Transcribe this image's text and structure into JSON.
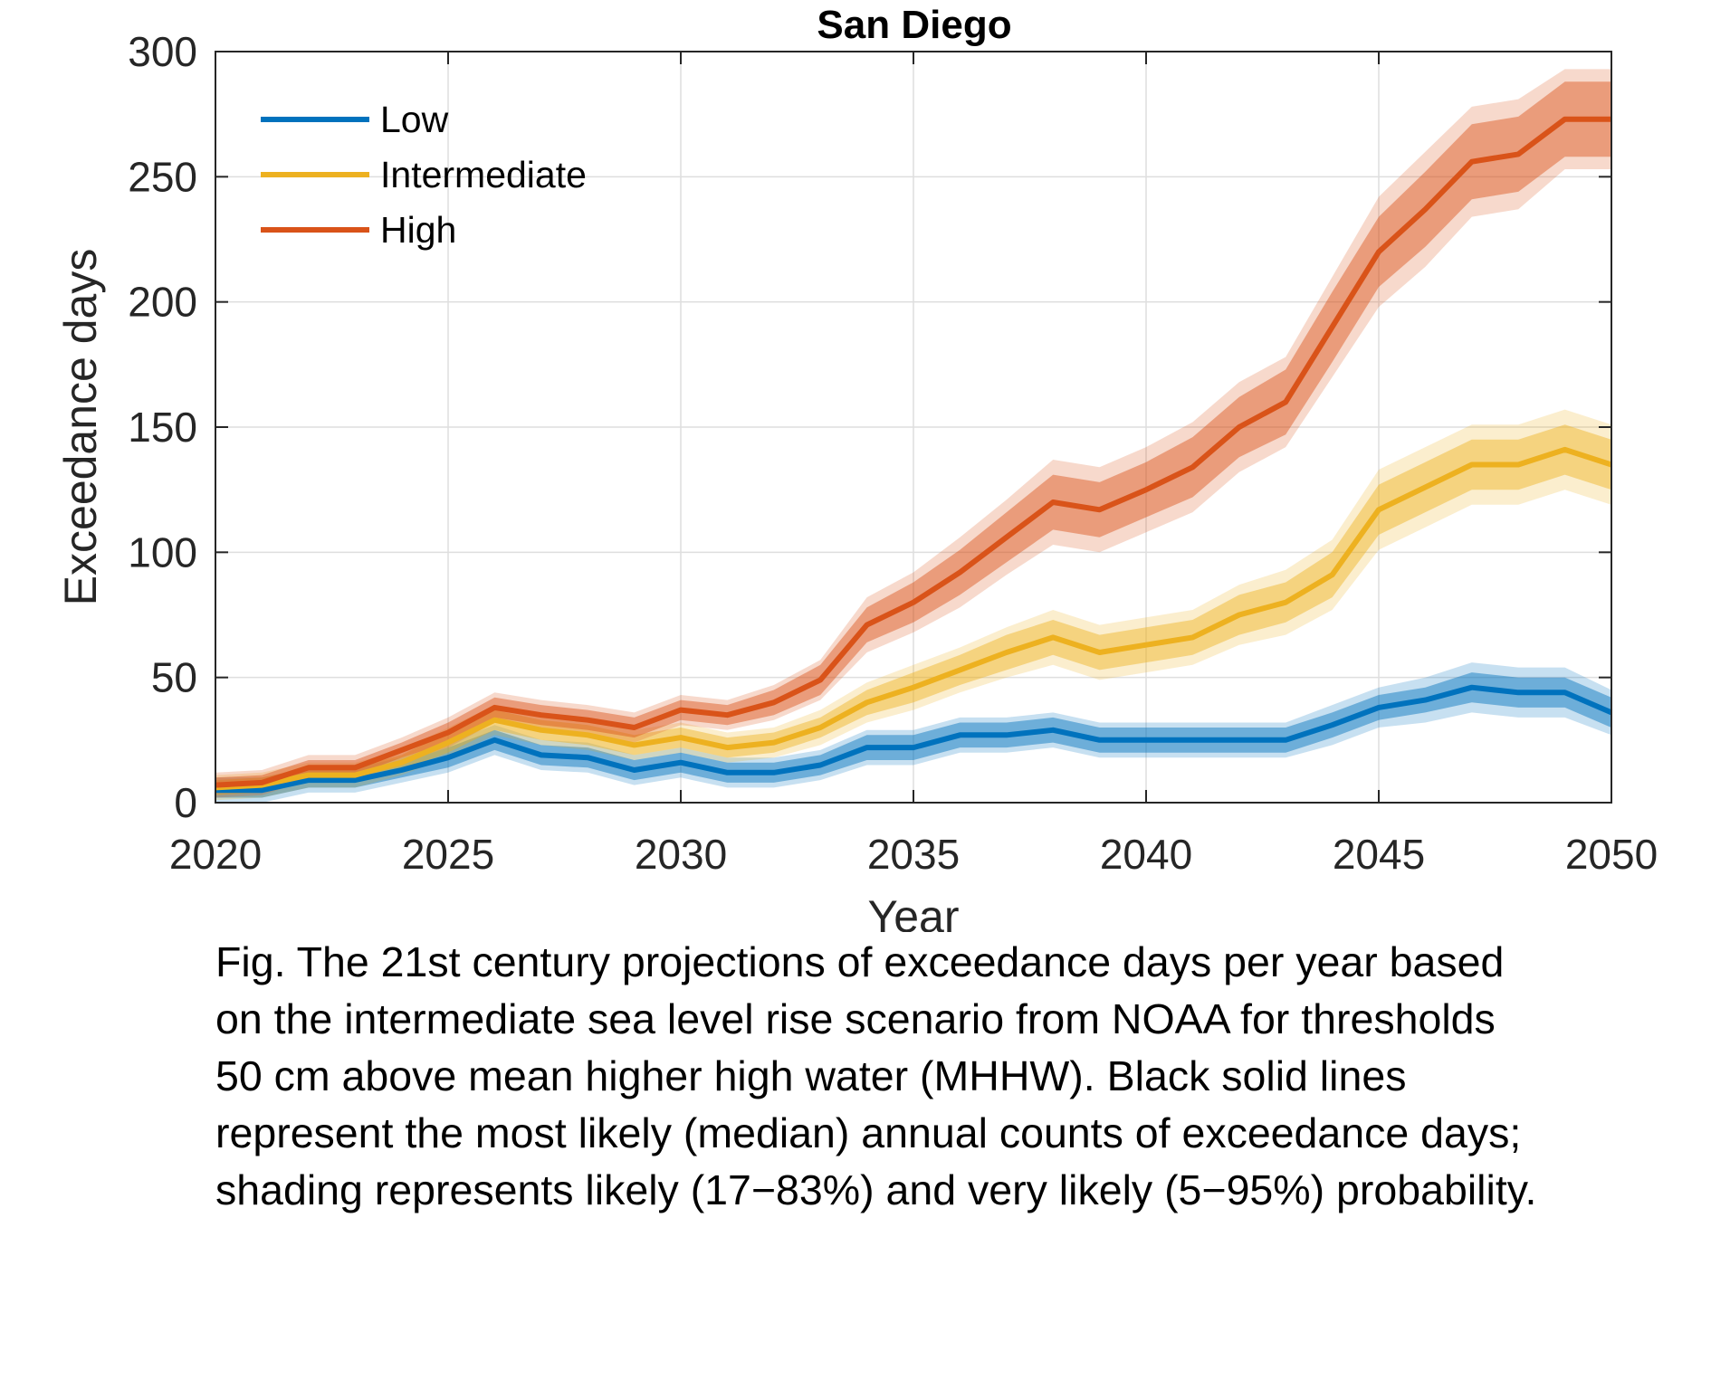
{
  "chart_data": {
    "type": "line",
    "title": "San Diego",
    "xlabel": "Year",
    "ylabel": "Exceedance days",
    "xlim": [
      2020,
      2050
    ],
    "ylim": [
      0,
      300
    ],
    "xticks": [
      2020,
      2025,
      2030,
      2035,
      2040,
      2045,
      2050
    ],
    "yticks": [
      0,
      50,
      100,
      150,
      200,
      250,
      300
    ],
    "grid": true,
    "legend_position": "top-left",
    "x": [
      2020,
      2021,
      2022,
      2023,
      2024,
      2025,
      2026,
      2027,
      2028,
      2029,
      2030,
      2031,
      2032,
      2033,
      2034,
      2035,
      2036,
      2037,
      2038,
      2039,
      2040,
      2041,
      2042,
      2043,
      2044,
      2045,
      2046,
      2047,
      2048,
      2049,
      2050
    ],
    "series": [
      {
        "name": "Low",
        "color": "#0072BD",
        "values": [
          5,
          5,
          9,
          9,
          13,
          18,
          25,
          19,
          18,
          13,
          16,
          12,
          12,
          15,
          22,
          22,
          27,
          27,
          29,
          25,
          25,
          25,
          25,
          25,
          31,
          38,
          41,
          46,
          44,
          44,
          36
        ],
        "likely_band_width": [
          3,
          3,
          3,
          3,
          3,
          4,
          4,
          4,
          4,
          4,
          4,
          4,
          4,
          4,
          5,
          5,
          5,
          5,
          5,
          5,
          5,
          5,
          5,
          5,
          5,
          5,
          5,
          6,
          6,
          6,
          6
        ],
        "very_likely_band_width": [
          5,
          5,
          5,
          5,
          5,
          6,
          6,
          6,
          6,
          6,
          6,
          6,
          6,
          6,
          7,
          7,
          7,
          7,
          7,
          7,
          7,
          7,
          7,
          7,
          8,
          8,
          9,
          10,
          10,
          10,
          9
        ]
      },
      {
        "name": "Intermediate",
        "color": "#EDB120",
        "values": [
          6,
          7,
          11,
          11,
          16,
          24,
          33,
          29,
          27,
          23,
          26,
          22,
          24,
          30,
          40,
          46,
          53,
          60,
          66,
          60,
          63,
          66,
          75,
          80,
          91,
          117,
          126,
          135,
          135,
          141,
          135
        ],
        "likely_band_width": [
          3,
          3,
          3,
          3,
          3,
          4,
          4,
          4,
          4,
          4,
          4,
          4,
          4,
          4,
          5,
          6,
          6,
          7,
          7,
          7,
          7,
          7,
          8,
          8,
          9,
          10,
          10,
          10,
          10,
          10,
          10
        ],
        "very_likely_band_width": [
          5,
          5,
          5,
          5,
          5,
          6,
          6,
          6,
          6,
          6,
          6,
          6,
          6,
          7,
          8,
          9,
          9,
          10,
          11,
          11,
          11,
          11,
          12,
          13,
          14,
          16,
          16,
          16,
          16,
          16,
          16
        ]
      },
      {
        "name": "High",
        "color": "#D95319",
        "values": [
          7,
          8,
          14,
          14,
          21,
          28,
          38,
          35,
          33,
          30,
          37,
          35,
          40,
          49,
          71,
          80,
          92,
          106,
          120,
          117,
          125,
          134,
          150,
          160,
          190,
          220,
          237,
          256,
          259,
          273,
          273
        ],
        "likely_band_width": [
          3,
          3,
          3,
          3,
          3,
          4,
          4,
          4,
          4,
          4,
          4,
          4,
          5,
          6,
          7,
          8,
          9,
          10,
          11,
          11,
          11,
          12,
          12,
          13,
          14,
          14,
          15,
          15,
          15,
          15,
          15
        ],
        "very_likely_band_width": [
          5,
          5,
          5,
          5,
          5,
          6,
          6,
          6,
          6,
          6,
          6,
          6,
          7,
          8,
          11,
          12,
          14,
          15,
          17,
          17,
          17,
          18,
          18,
          18,
          20,
          22,
          23,
          22,
          22,
          20,
          20
        ]
      }
    ]
  },
  "caption": [
    "Fig. The 21st century projections of exceedance days per year based",
    "on the intermediate sea level rise scenario from NOAA for thresholds",
    "50 cm above mean higher high water (MHHW). Black solid lines",
    "represent the most likely (median) annual counts of exceedance days;",
    "shading represents likely (17−83%) and very likely (5−95%) probability."
  ]
}
